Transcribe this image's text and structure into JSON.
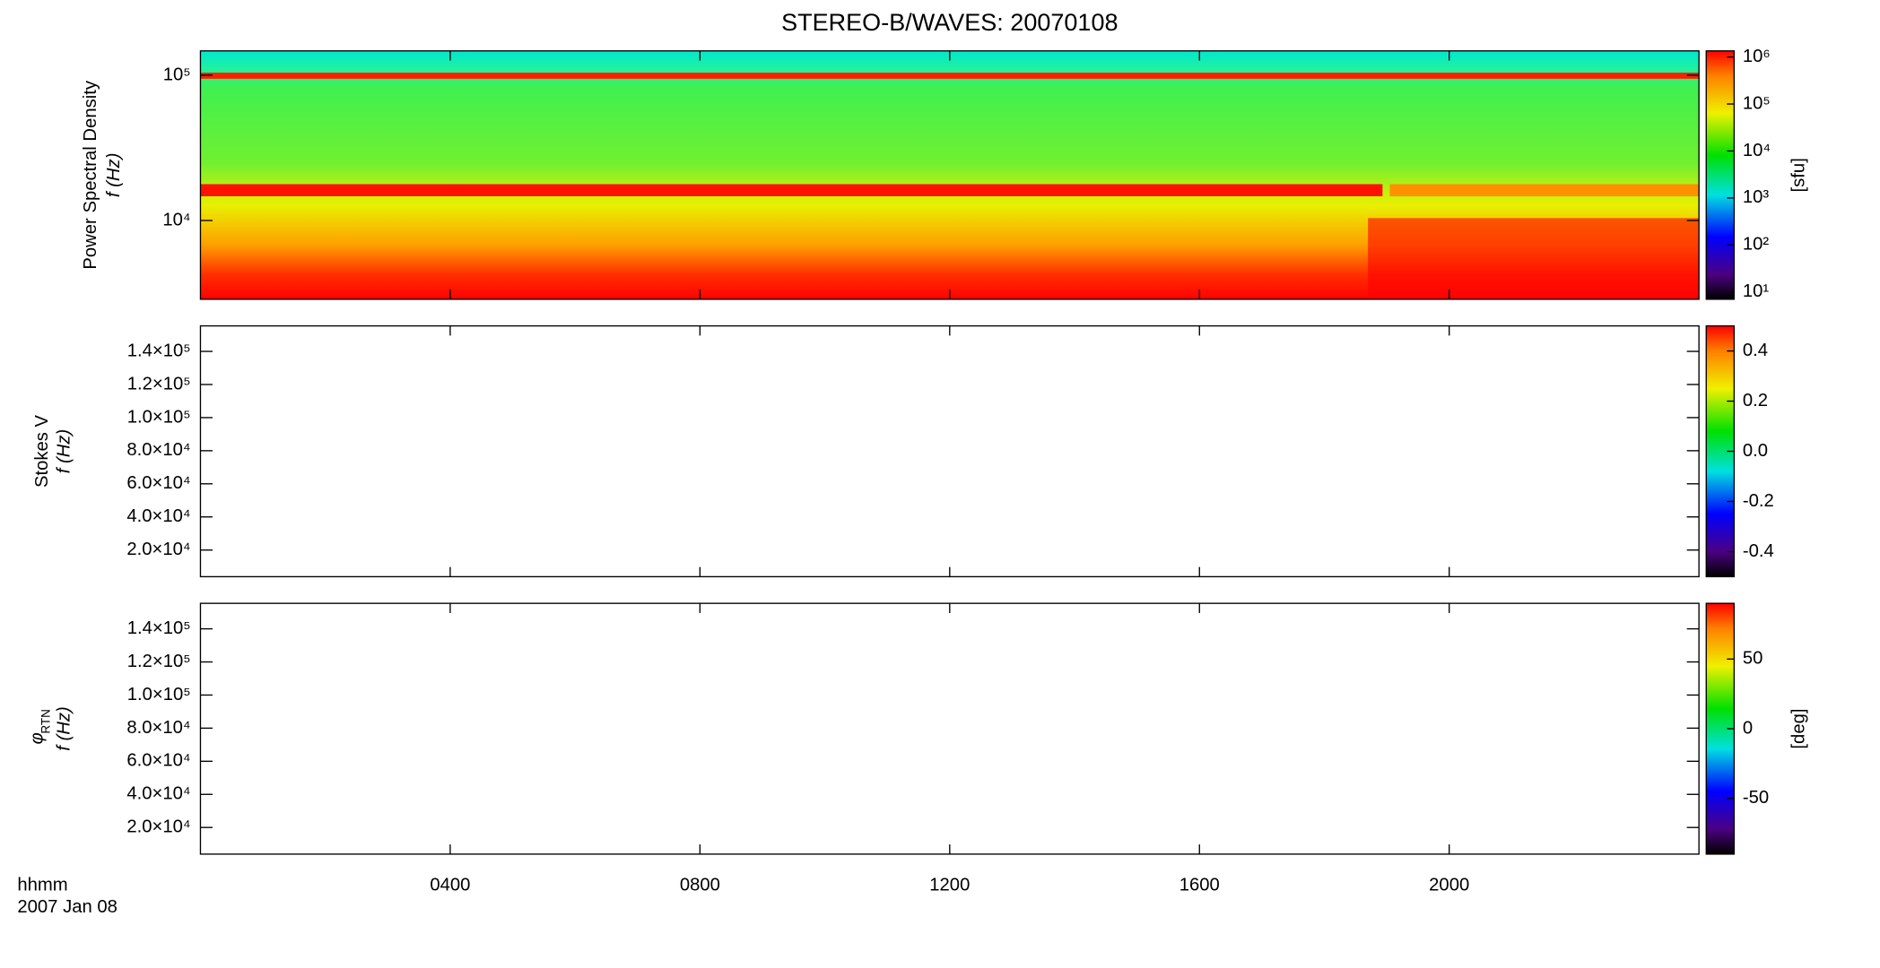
{
  "chart_data": [
    {
      "type": "spectrogram",
      "title": "STEREO-B/WAVES: 20070108",
      "ylabel": [
        "Power Spectral Density",
        "f (Hz)"
      ],
      "ylog": true,
      "ylim": [
        2870,
        147000
      ],
      "yticks": [
        {
          "value": 10000,
          "label": "10⁴"
        },
        {
          "value": 100000,
          "label": "10⁵"
        }
      ],
      "colorbar": {
        "label": "[sfu]",
        "log": true,
        "lim": [
          7,
          1350000
        ],
        "ticks": [
          {
            "value": 10,
            "label": "10¹"
          },
          {
            "value": 100,
            "label": "10²"
          },
          {
            "value": 1000,
            "label": "10³"
          },
          {
            "value": 10000,
            "label": "10⁴"
          },
          {
            "value": 100000,
            "label": "10⁵"
          },
          {
            "value": 1000000,
            "label": "10⁶"
          }
        ]
      }
    },
    {
      "type": "spectrogram",
      "ylabel": [
        "Stokes V",
        "f (Hz)"
      ],
      "ylog": false,
      "ylim": [
        3900,
        155400
      ],
      "yticks": [
        {
          "value": 20000,
          "label": "2.0×10⁴"
        },
        {
          "value": 40000,
          "label": "4.0×10⁴"
        },
        {
          "value": 60000,
          "label": "6.0×10⁴"
        },
        {
          "value": 80000,
          "label": "8.0×10⁴"
        },
        {
          "value": 100000,
          "label": "1.0×10⁵"
        },
        {
          "value": 120000,
          "label": "1.2×10⁵"
        },
        {
          "value": 140000,
          "label": "1.4×10⁵"
        }
      ],
      "colorbar": {
        "log": false,
        "lim": [
          -0.5,
          0.5
        ],
        "ticks": [
          -0.4,
          -0.2,
          {
            "value": 0,
            "label": "0.0"
          },
          0.2,
          0.4
        ]
      }
    },
    {
      "type": "spectrogram",
      "ylabel": [
        {
          "symbol": "φ",
          "subscript": "RTN"
        },
        "f (Hz)"
      ],
      "ylog": false,
      "ylim": [
        3900,
        155400
      ],
      "yticks": [
        {
          "value": 20000,
          "label": "2.0×10⁴"
        },
        {
          "value": 40000,
          "label": "4.0×10⁴"
        },
        {
          "value": 60000,
          "label": "6.0×10⁴"
        },
        {
          "value": 80000,
          "label": "8.0×10⁴"
        },
        {
          "value": 100000,
          "label": "1.0×10⁵"
        },
        {
          "value": 120000,
          "label": "1.2×10⁵"
        },
        {
          "value": 140000,
          "label": "1.4×10⁵"
        }
      ],
      "colorbar": {
        "label": "[deg]",
        "log": false,
        "lim": [
          -90,
          90
        ],
        "ticks": [
          -50,
          0,
          50
        ]
      },
      "xlabel": "hhmm",
      "date": "2007 Jan 08",
      "xlim": [
        0,
        24
      ],
      "xticks": [
        {
          "value": 4,
          "label": "0400"
        },
        {
          "value": 8,
          "label": "0800"
        },
        {
          "value": 12,
          "label": "1200"
        },
        {
          "value": 16,
          "label": "1600"
        },
        {
          "value": 20,
          "label": "2000"
        }
      ]
    }
  ]
}
